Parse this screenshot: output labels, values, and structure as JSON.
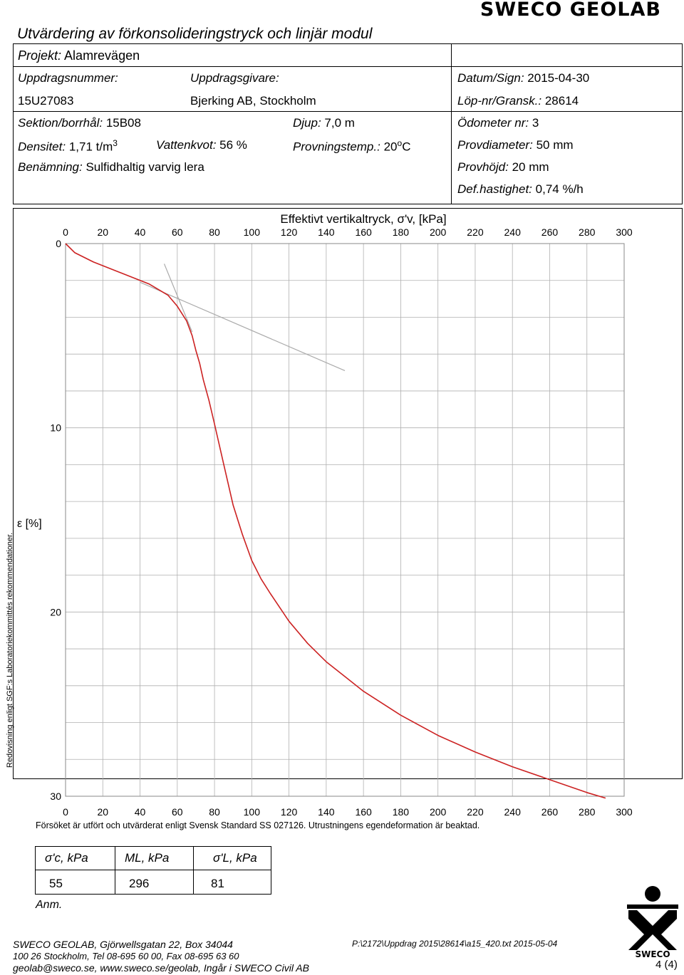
{
  "header": {
    "brand": "SWECO GEOLAB",
    "title": "Utvärdering av förkonsolideringstryck och linjär modul",
    "project_label": "Projekt:",
    "project_value": "Alamrevägen",
    "assignment_no_label": "Uppdragsnummer:",
    "assignment_no_value": "15U27083",
    "client_label": "Uppdragsgivare:",
    "client_value": "Bjerking AB, Stockholm",
    "date_label": "Datum/Sign:",
    "date_value": "2015-04-30",
    "runno_label": "Löp-nr/Gransk.:",
    "runno_value": "28614",
    "section_label": "Sektion/borrhål:",
    "section_value": "15B08",
    "depth_label": "Djup:",
    "depth_value": "7,0 m",
    "oedometer_label": "Ödometer nr:",
    "oedometer_value": "3",
    "density_label": "Densitet:",
    "density_value": "1,71 t/m",
    "density_sup": "3",
    "water_label": "Vattenkvot:",
    "water_value": "56 %",
    "temp_label": "Provningstemp.:",
    "temp_value": "20",
    "temp_sup": "o",
    "temp_unit": "C",
    "diameter_label": "Provdiameter:",
    "diameter_value": "50 mm",
    "naming_label": "Benämning:",
    "naming_value": "Sulfidhaltig varvig lera",
    "height_label": "Provhöjd:",
    "height_value": "20 mm",
    "rate_label": "Def.hastighet:",
    "rate_value": "0,74 %/h"
  },
  "chart_data": {
    "type": "line",
    "title": "Effektivt vertikaltryck, σ'v, [kPa]",
    "xlabel": "Effektivt vertikaltryck, σ'v, [kPa]",
    "ylabel": "ε [%]",
    "xlim": [
      0,
      300
    ],
    "ylim": [
      0,
      30
    ],
    "y_inverted": true,
    "x_ticks": [
      "0",
      "20",
      "40",
      "60",
      "80",
      "100",
      "120",
      "140",
      "160",
      "180",
      "200",
      "220",
      "240",
      "260",
      "280",
      "300"
    ],
    "y_ticks": [
      "0",
      "10",
      "20",
      "30"
    ],
    "grid": true,
    "series": [
      {
        "color": "#cc2222",
        "x": [
          0,
          5,
          15,
          30,
          45,
          55,
          60,
          65,
          68,
          70,
          72,
          74,
          77,
          80,
          85,
          90,
          95,
          100,
          105,
          110,
          120,
          130,
          140,
          150,
          160,
          180,
          200,
          220,
          240,
          260,
          280,
          290
        ],
        "y": [
          0,
          0.5,
          1.0,
          1.6,
          2.2,
          2.8,
          3.4,
          4.2,
          5.0,
          5.8,
          6.5,
          7.4,
          8.5,
          9.8,
          12.0,
          14.2,
          15.8,
          17.2,
          18.2,
          19.0,
          20.5,
          21.7,
          22.7,
          23.5,
          24.3,
          25.6,
          26.7,
          27.6,
          28.4,
          29.1,
          29.8,
          30.1
        ]
      }
    ],
    "construction_lines": [
      {
        "color": "#aaaaaa",
        "x": [
          40,
          150
        ],
        "y": [
          2.1,
          6.9
        ]
      },
      {
        "color": "#aaaaaa",
        "x": [
          53,
          68
        ],
        "y": [
          1.1,
          4.8
        ]
      }
    ]
  },
  "notes": {
    "standard_text": "Försöket är utfört och utvärderat enligt Svensk Standard SS 027126. Utrustningens egendeformation är beaktad.",
    "side_text": "Redovisning enligt SGF:s Laboratoriekommittés rekommendationer."
  },
  "results": {
    "sigma_c_label": "σ'c, kPa",
    "sigma_c_value": "55",
    "ml_label": "ML, kPa",
    "ml_value": "296",
    "sigma_l_label": "σ'L, kPa",
    "sigma_l_value": "81",
    "remarks_label": "Anm."
  },
  "footer": {
    "line1": "SWECO GEOLAB, Gjörwellsgatan 22, Box 34044",
    "line2": "100 26 Stockholm, Tel 08-695 60 00, Fax 08-695 63 60",
    "line3": "geolab@sweco.se, www.sweco.se/geolab, Ingår i SWECO Civil AB",
    "path": "P:\\2172\\Uppdrag 2015\\28614\\a15_420.txt 2015-05-04",
    "page": "4 (4)"
  }
}
